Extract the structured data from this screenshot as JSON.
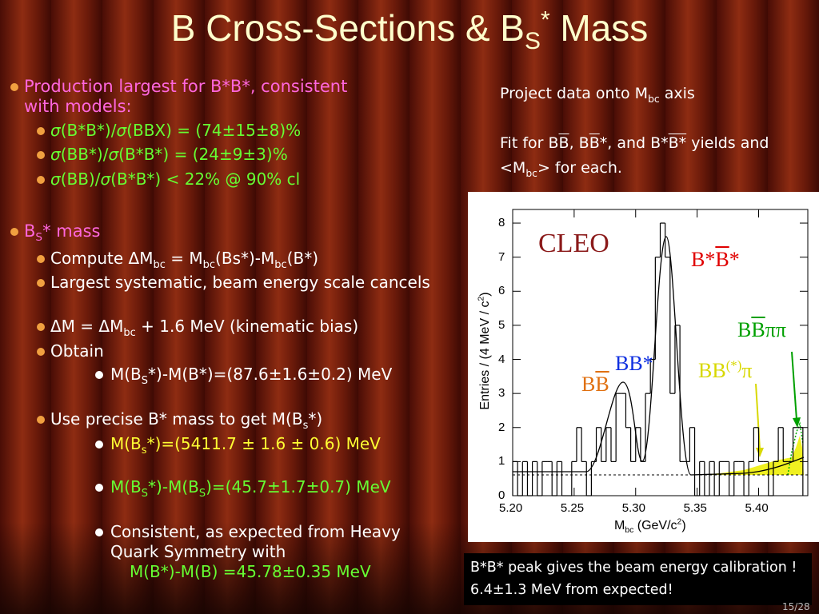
{
  "title": [
    {
      "text": "B Cross-Sections & B"
    },
    {
      "sub": "S"
    },
    {
      "sup": "*"
    },
    {
      "text": " Mass"
    }
  ],
  "left_bullets": [
    {
      "level": 1,
      "color": "#ff66dd",
      "segments": [
        {
          "text": "Production largest for B*B*, consistent with models:"
        }
      ]
    },
    {
      "level": 2,
      "color": "#66ff33",
      "segments": [
        {
          "text": "σ",
          "italic": true
        },
        {
          "text": "(B*B*)/"
        },
        {
          "text": "σ",
          "italic": true
        },
        {
          "text": "(BBX) = (74±15±8)%"
        }
      ]
    },
    {
      "level": 2,
      "color": "#66ff33",
      "segments": [
        {
          "text": "σ",
          "italic": true
        },
        {
          "text": "(BB*)/"
        },
        {
          "text": "σ",
          "italic": true
        },
        {
          "text": "(B*B*) = (24±9±3)%"
        }
      ]
    },
    {
      "level": 2,
      "color": "#66ff33",
      "segments": [
        {
          "text": "σ",
          "italic": true
        },
        {
          "text": "(BB)/"
        },
        {
          "text": "σ",
          "italic": true
        },
        {
          "text": "(B*B*) < 22% @ 90% cl"
        }
      ]
    },
    {
      "level": 1,
      "color": "#ff66dd",
      "segments": [
        {
          "text": "B"
        },
        {
          "sub": "S"
        },
        {
          "text": "* mass"
        }
      ]
    },
    {
      "level": 2,
      "color": "#ffffff",
      "segments": [
        {
          "text": "Compute ΔM"
        },
        {
          "sub": "bc"
        },
        {
          "text": " = M"
        },
        {
          "sub": "bc"
        },
        {
          "text": "(Bs*)-M"
        },
        {
          "sub": "bc"
        },
        {
          "text": "(B*)"
        }
      ]
    },
    {
      "level": 2,
      "color": "#ffffff",
      "segments": [
        {
          "text": "Largest systematic, beam energy scale cancels"
        }
      ]
    },
    {
      "level": 2,
      "color": "#ffffff",
      "segments": [
        {
          "text": "ΔM = ΔM"
        },
        {
          "sub": "bc"
        },
        {
          "text": " + 1.6 MeV (kinematic bias)"
        }
      ]
    },
    {
      "level": 2,
      "color": "#ffffff",
      "segments": [
        {
          "text": "Obtain"
        }
      ]
    },
    {
      "level": 3,
      "color": "#ffffff",
      "segments": [
        {
          "text": "M(B"
        },
        {
          "sub": "S"
        },
        {
          "text": "*)-M(B*)=(87.6±1.6±0.2) MeV"
        }
      ]
    },
    {
      "level": 2,
      "color": "#ffffff",
      "segments": [
        {
          "text": "Use precise B* mass to get M(B"
        },
        {
          "sub": "s"
        },
        {
          "text": "*)"
        }
      ]
    },
    {
      "level": 3,
      "color": "#ffff33",
      "segments": [
        {
          "text": "M(B"
        },
        {
          "sub": "s"
        },
        {
          "text": "*)=(5411.7 ± 1.6 ± 0.6) MeV"
        }
      ]
    },
    {
      "level": 3,
      "color": "#66ff33",
      "segments": [
        {
          "text": "M(B"
        },
        {
          "sub": "S"
        },
        {
          "text": "*)-M(B"
        },
        {
          "sub": "S"
        },
        {
          "text": ")=(45.7±1.7±0.7) MeV"
        }
      ]
    },
    {
      "level": 3,
      "color": "#ffffff",
      "segments": [
        {
          "text": "Consistent, as expected from Heavy Quark Symmetry with"
        }
      ]
    },
    {
      "level": 0,
      "color": "#66ff33",
      "segments": [
        {
          "text": "M(B*)-M(B) =45.78±0.35 MeV"
        }
      ]
    }
  ],
  "right_text": [
    [
      {
        "text": "Project data onto M"
      },
      {
        "sub": "bc"
      },
      {
        "text": " axis"
      }
    ],
    [
      {
        "text": "Fit for B"
      },
      {
        "text": "B",
        "overline": true
      },
      {
        "text": ", B"
      },
      {
        "text": "B",
        "overline": true
      },
      {
        "text": "*, and B*"
      },
      {
        "text": "B*",
        "overline": true
      },
      {
        "text": " yields and <M"
      },
      {
        "sub": "bc"
      },
      {
        "text": "> for each."
      }
    ]
  ],
  "callout": "B*B* peak gives the beam energy calibration ! 6.4±1.3 MeV from expected!",
  "page_number": "15/28",
  "chart_data": {
    "type": "histogram",
    "xlabel": [
      {
        "text": "M"
      },
      {
        "sub": "bc"
      },
      {
        "text": " (GeV/c"
      },
      {
        "sup": "2"
      },
      {
        "text": ")"
      }
    ],
    "ylabel": [
      {
        "text": "Entries / (4 MeV / c"
      },
      {
        "sup": "2"
      },
      {
        "text": ")"
      }
    ],
    "annotations": [
      {
        "color": "#8b1a1a",
        "segments": [
          {
            "text": "CLEO"
          }
        ]
      },
      {
        "color": "#e00000",
        "segments": [
          {
            "text": "B*"
          },
          {
            "text": "B",
            "overline": true
          },
          {
            "text": "*"
          }
        ]
      },
      {
        "color": "#00a000",
        "segments": [
          {
            "text": "B"
          },
          {
            "text": "B",
            "overline": true
          },
          {
            "text": "ππ"
          }
        ]
      },
      {
        "color": "#1030e0",
        "segments": [
          {
            "text": "BB*"
          }
        ]
      },
      {
        "color": "#e07010",
        "segments": [
          {
            "text": "B"
          },
          {
            "text": "B",
            "overline": true
          }
        ]
      },
      {
        "color": "#d8d800",
        "segments": [
          {
            "text": "BB"
          },
          {
            "sup": "(*)"
          },
          {
            "text": "π"
          }
        ]
      }
    ],
    "bins": [
      5.2,
      5.204,
      5.208,
      5.212,
      5.216,
      5.22,
      5.224,
      5.228,
      5.232,
      5.236,
      5.24,
      5.244,
      5.248,
      5.252,
      5.256,
      5.26,
      5.264,
      5.268,
      5.272,
      5.276,
      5.28,
      5.284,
      5.288,
      5.292,
      5.296,
      5.3,
      5.304,
      5.308,
      5.312,
      5.316,
      5.32,
      5.324,
      5.328,
      5.332,
      5.336,
      5.34,
      5.344,
      5.348,
      5.352,
      5.356,
      5.36,
      5.364,
      5.368,
      5.372,
      5.376,
      5.38,
      5.384,
      5.388,
      5.392,
      5.396,
      5.4,
      5.404,
      5.408,
      5.412,
      5.416,
      5.42,
      5.424,
      5.428,
      5.432,
      5.436
    ],
    "values": [
      1,
      0,
      1,
      0,
      1,
      0,
      1,
      1,
      0,
      1,
      0,
      0,
      1,
      2,
      1,
      0,
      1,
      2,
      1,
      2,
      1,
      3,
      3,
      2,
      1,
      2,
      1,
      3,
      4,
      7,
      8,
      7,
      3,
      5,
      1,
      1,
      2,
      0,
      1,
      0,
      1,
      0,
      1,
      1,
      0,
      1,
      1,
      0,
      1,
      2,
      1,
      1,
      0,
      1,
      2,
      1,
      1,
      2,
      2
    ],
    "color": "#000000",
    "xlim": [
      5.2,
      5.44
    ],
    "ylim": [
      0,
      8.4
    ],
    "xticks": [
      {
        "value": 5.2,
        "label": "5.20"
      },
      {
        "value": 5.25,
        "label": "5.25"
      },
      {
        "value": 5.3,
        "label": "5.30"
      },
      {
        "value": 5.35,
        "label": "5.35"
      },
      {
        "value": 5.4,
        "label": "5.40"
      }
    ],
    "yticks": [
      0,
      1,
      2,
      3,
      4,
      5,
      6,
      7,
      8
    ]
  }
}
